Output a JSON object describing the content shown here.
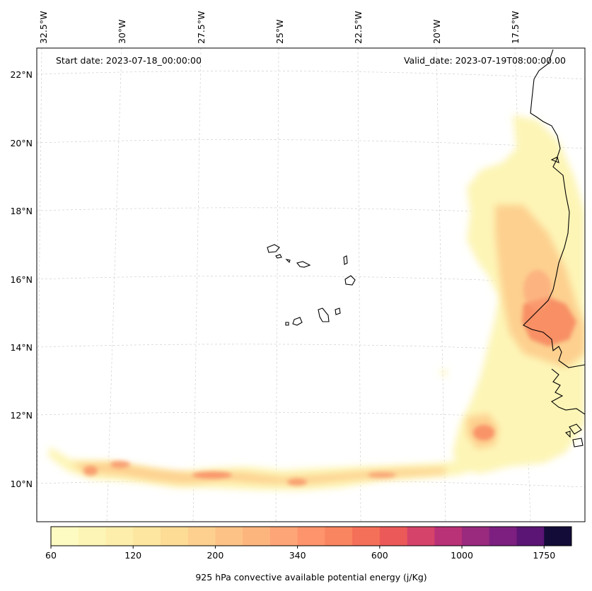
{
  "map": {
    "start_label": "Start date: 2023-07-18_00:00:00",
    "valid_label": "Valid_date: 2023-07-19T08:00:00.00",
    "lon_labels": [
      "32.5°W",
      "30°W",
      "27.5°W",
      "25°W",
      "22.5°W",
      "20°W",
      "17.5°W"
    ],
    "lat_labels": [
      "22°N",
      "20°N",
      "18°N",
      "16°N",
      "14°N",
      "12°N",
      "10°N"
    ],
    "colors": {
      "coastline": "#000000",
      "gridline": "#c8c8c8",
      "cape_low": "#fdf5b6",
      "cape_mid": "#fdd08f",
      "cape_high": "#f7845e"
    }
  },
  "colorbar": {
    "title": "925 hPa convective available potential energy (j/Kg)",
    "tick_labels": [
      "60",
      "120",
      "200",
      "340",
      "600",
      "1000",
      "1750"
    ],
    "colors": [
      "#fefbc2",
      "#fdf5b6",
      "#fdefab",
      "#fde7a0",
      "#fddc96",
      "#fdd08f",
      "#fdc386",
      "#fdb57e",
      "#fda576",
      "#fd946c",
      "#f98460",
      "#f57058",
      "#eb5a58",
      "#d5436a",
      "#b93177",
      "#992a7e",
      "#7c1f81",
      "#5b1575",
      "#130c38"
    ]
  }
}
